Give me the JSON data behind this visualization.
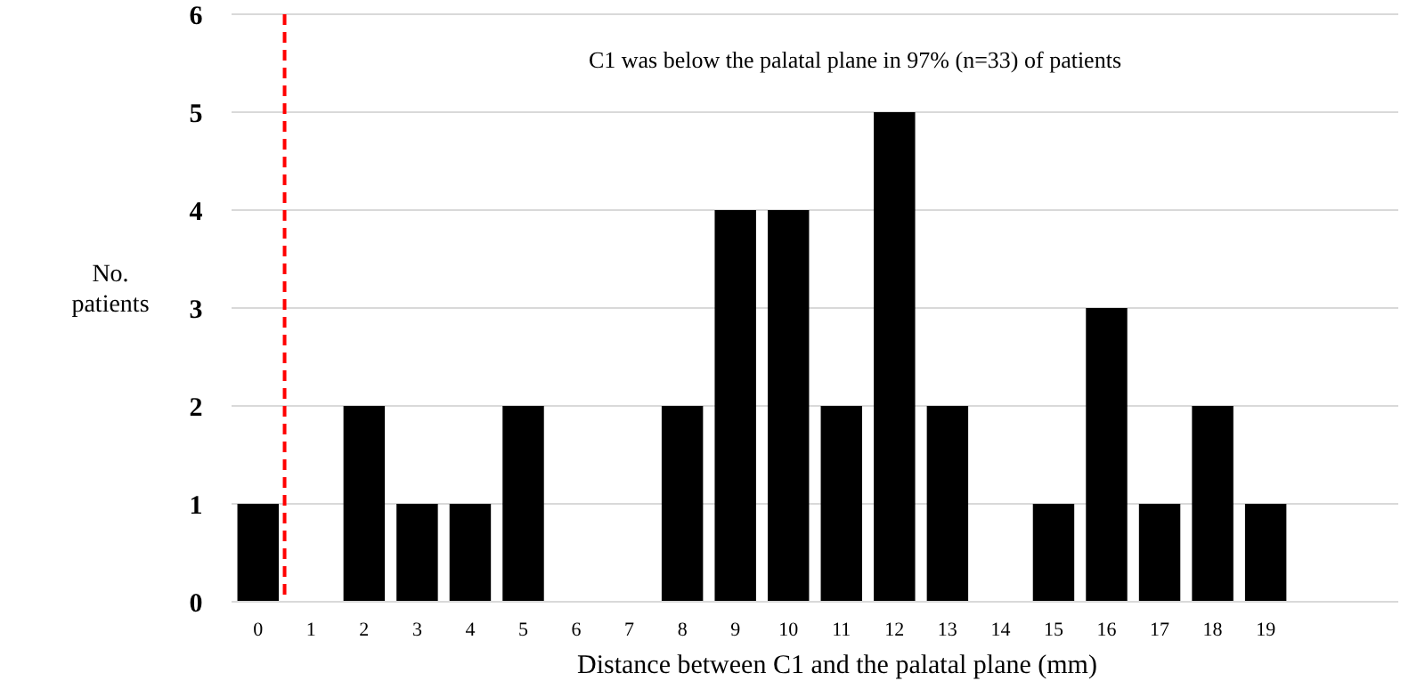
{
  "chart_data": {
    "type": "bar",
    "xlabel": "Distance between C1 and the palatal plane (mm)",
    "ylabel": "No. patients",
    "x": [
      0,
      1,
      2,
      3,
      4,
      5,
      6,
      7,
      8,
      9,
      10,
      11,
      12,
      13,
      14,
      15,
      16,
      17,
      18,
      19
    ],
    "values": [
      1,
      0,
      2,
      1,
      1,
      2,
      0,
      0,
      2,
      4,
      4,
      2,
      5,
      2,
      0,
      1,
      3,
      1,
      2,
      1
    ],
    "xlim": [
      -0.5,
      21.5
    ],
    "xticks": [
      0,
      1,
      2,
      3,
      4,
      5,
      6,
      7,
      8,
      9,
      10,
      11,
      12,
      13,
      14,
      15,
      16,
      17,
      18,
      19
    ],
    "color": "#000000",
    "ylim": [
      0,
      6
    ],
    "yticks": [
      0,
      1,
      2,
      3,
      4,
      5,
      6
    ],
    "grid": "y",
    "ref_lines": [
      {
        "axis": "x",
        "value": 0.5,
        "color": "#ff0000",
        "line_style": "dashed"
      }
    ],
    "annotations": [
      "C1 was below the palatal plane in 97% (n=33) of patients"
    ]
  }
}
